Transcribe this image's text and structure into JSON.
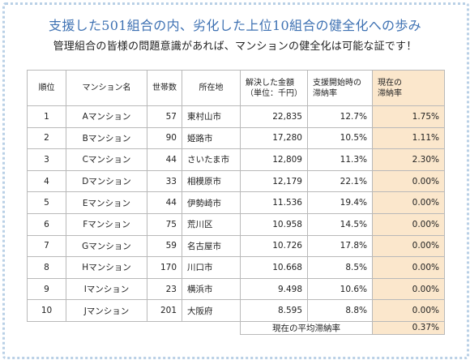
{
  "header": {
    "title": "支援した501組合の内、劣化した上位10組合の健全化への歩み",
    "subtitle": "管理組合の皆様の問題意識があれば、マンションの健全化は可能な証です！"
  },
  "table": {
    "columns": {
      "rank": "順位",
      "name": "マンション名",
      "units": "世帯数",
      "location": "所在地",
      "amount_l1": "解決した金額",
      "amount_l2": "（単位：千円）",
      "start_l1": "支援開始時の",
      "start_l2": "滞納率",
      "current_l1": "現在の",
      "current_l2": "滞納率"
    },
    "rows": [
      {
        "rank": "1",
        "name": "Aマンション",
        "units": "57",
        "location": "東村山市",
        "amount": "22,835",
        "start_rate": "12.7%",
        "current_rate": "1.75%"
      },
      {
        "rank": "2",
        "name": "Bマンション",
        "units": "90",
        "location": "姫路市",
        "amount": "17,280",
        "start_rate": "10.5%",
        "current_rate": "1.11%"
      },
      {
        "rank": "3",
        "name": "Cマンション",
        "units": "44",
        "location": "さいたま市",
        "amount": "12,809",
        "start_rate": "11.3%",
        "current_rate": "2.30%"
      },
      {
        "rank": "4",
        "name": "Dマンション",
        "units": "33",
        "location": "相模原市",
        "amount": "12,179",
        "start_rate": "22.1%",
        "current_rate": "0.00%"
      },
      {
        "rank": "5",
        "name": "Eマンション",
        "units": "44",
        "location": "伊勢崎市",
        "amount": "11.536",
        "start_rate": "19.4%",
        "current_rate": "0.00%"
      },
      {
        "rank": "6",
        "name": "Fマンション",
        "units": "75",
        "location": "荒川区",
        "amount": "10.958",
        "start_rate": "14.5%",
        "current_rate": "0.00%"
      },
      {
        "rank": "7",
        "name": "Gマンション",
        "units": "59",
        "location": "名古屋市",
        "amount": "10.726",
        "start_rate": "17.8%",
        "current_rate": "0.00%"
      },
      {
        "rank": "8",
        "name": "Hマンション",
        "units": "170",
        "location": "川口市",
        "amount": "10.668",
        "start_rate": "8.5%",
        "current_rate": "0.00%"
      },
      {
        "rank": "9",
        "name": "Iマンション",
        "units": "23",
        "location": "横浜市",
        "amount": "9.498",
        "start_rate": "10.6%",
        "current_rate": "0.00%"
      },
      {
        "rank": "10",
        "name": "Jマンション",
        "units": "201",
        "location": "大阪府",
        "amount": "8.595",
        "start_rate": "8.8%",
        "current_rate": "0.00%"
      }
    ],
    "footer": {
      "label": "現在の平均滞納率",
      "value": "0.37%"
    }
  },
  "colors": {
    "title": "#3f72b3",
    "highlight": "#fbe7cc",
    "border_dots": "#b9d0e6"
  }
}
